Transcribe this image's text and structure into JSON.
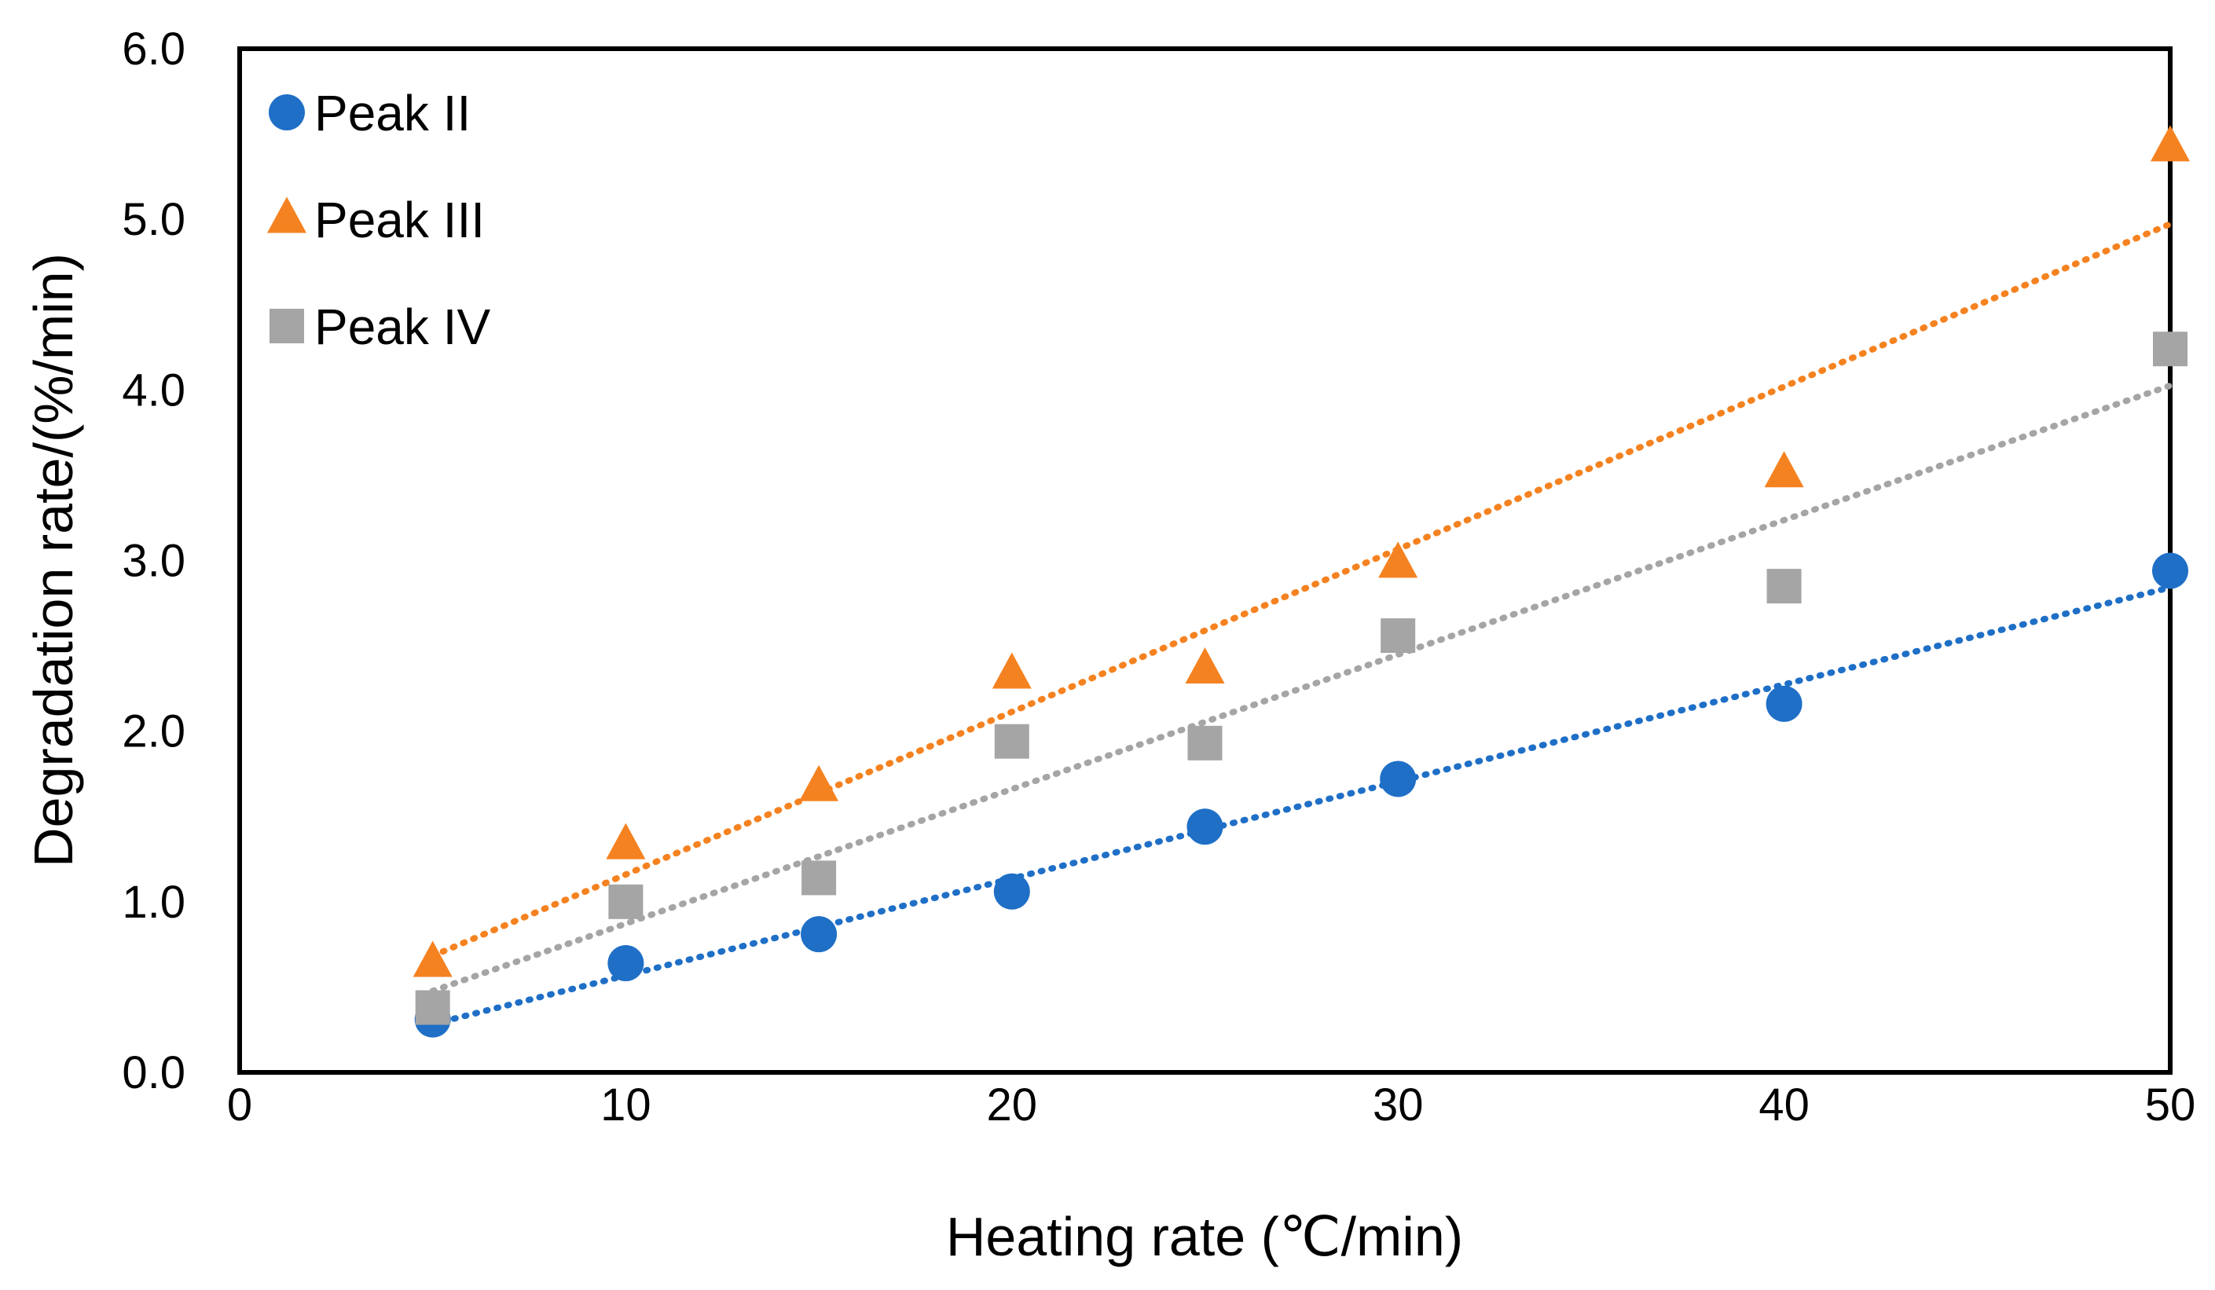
{
  "chart_data": {
    "type": "scatter",
    "title": "",
    "xlabel": "Heating rate (℃/min)",
    "ylabel": "Degradation rate/(%/min)",
    "xlim": [
      0,
      50
    ],
    "ylim": [
      0,
      6
    ],
    "x_ticks": [
      "0",
      "10",
      "20",
      "30",
      "40",
      "50"
    ],
    "y_ticks": [
      "0.0",
      "1.0",
      "2.0",
      "3.0",
      "4.0",
      "5.0",
      "6.0"
    ],
    "grid": false,
    "legend_position": "top-left",
    "trendline": "linear, dotted",
    "x": [
      5,
      10,
      15,
      20,
      25,
      30,
      40,
      50
    ],
    "series": [
      {
        "name": "Peak II",
        "marker": "circle",
        "color": "#1f6fc6",
        "values": [
          0.31,
          0.64,
          0.81,
          1.06,
          1.44,
          1.72,
          2.16,
          2.94
        ]
      },
      {
        "name": "Peak III",
        "marker": "triangle",
        "color": "#f58220",
        "values": [
          0.64,
          1.33,
          1.67,
          2.33,
          2.36,
          2.98,
          3.51,
          5.42
        ]
      },
      {
        "name": "Peak IV",
        "marker": "square",
        "color": "#a5a5a5",
        "values": [
          0.38,
          1.0,
          1.14,
          1.94,
          1.93,
          2.56,
          2.85,
          4.24
        ]
      }
    ]
  }
}
